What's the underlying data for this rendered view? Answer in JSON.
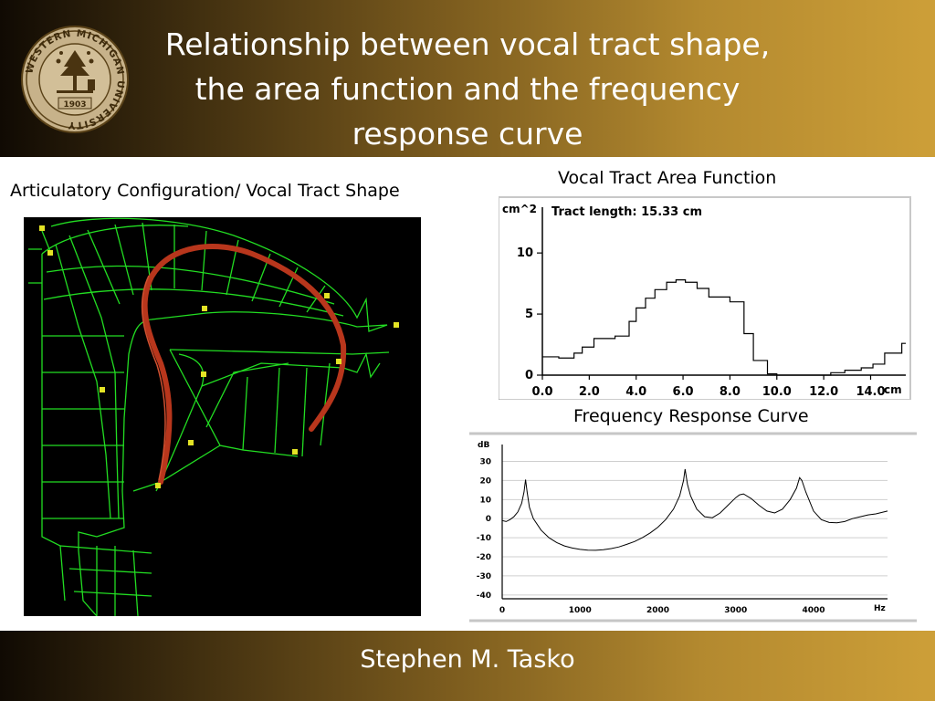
{
  "slide": {
    "title": "Relationship between vocal tract shape, the area function and the frequency response curve",
    "author": "Stephen M. Tasko"
  },
  "seal": {
    "ring_text": "WESTERN MICHIGAN UNIVERSITY",
    "year": "1903"
  },
  "captions": {
    "shape": "Articulatory Configuration/ Vocal Tract Shape",
    "area": "Vocal Tract Area Function",
    "frequency": "Frequency Response Curve"
  },
  "colors": {
    "mesh": "#22dd22",
    "tongue": "#b8361c",
    "marker": "#e3e325",
    "header_dark": "#100a03",
    "header_gold": "#cd9f38"
  },
  "chart_data": [
    {
      "type": "line",
      "title": "Vocal Tract Area Function",
      "annotation": "Tract length: 15.33 cm",
      "xlabel": "cm",
      "ylabel": "cm^2",
      "xlim": [
        0,
        15.5
      ],
      "ylim": [
        0,
        13
      ],
      "xticks": [
        "0.0",
        "2.0",
        "4.0",
        "6.0",
        "8.0",
        "10.0",
        "12.0",
        "14.0"
      ],
      "xtick_values": [
        0,
        2,
        4,
        6,
        8,
        10,
        12,
        14
      ],
      "yticks": [
        "0",
        "5",
        "10"
      ],
      "ytick_values": [
        0,
        5,
        10
      ],
      "step": true,
      "x": [
        0,
        0.7,
        1.35,
        1.7,
        2.2,
        3.1,
        3.7,
        4.0,
        4.4,
        4.8,
        5.3,
        5.7,
        6.1,
        6.6,
        7.1,
        8.0,
        8.6,
        9.0,
        9.6,
        10.0,
        11.3,
        12.3,
        12.9,
        13.6,
        14.1,
        14.6,
        15.33
      ],
      "y": [
        1.5,
        1.4,
        1.8,
        2.3,
        3.0,
        3.2,
        4.4,
        5.5,
        6.3,
        7.0,
        7.6,
        7.8,
        7.6,
        7.1,
        6.4,
        6.0,
        3.4,
        1.2,
        0.1,
        0.0,
        0.0,
        0.2,
        0.4,
        0.6,
        0.9,
        1.8,
        2.6
      ]
    },
    {
      "type": "line",
      "title": "Frequency Response Curve",
      "xlabel": "Hz",
      "ylabel": "dB",
      "xlim": [
        0,
        4950
      ],
      "ylim": [
        -42,
        36
      ],
      "xticks": [
        "0",
        "1000",
        "2000",
        "3000",
        "4000"
      ],
      "xtick_values": [
        0,
        1000,
        2000,
        3000,
        4000
      ],
      "yticks": [
        "30",
        "20",
        "10",
        "0",
        "-10",
        "-20",
        "-30",
        "-40"
      ],
      "ytick_values": [
        30,
        20,
        10,
        0,
        -10,
        -20,
        -30,
        -40
      ],
      "x": [
        0,
        50,
        100,
        150,
        200,
        250,
        280,
        300,
        320,
        350,
        400,
        500,
        600,
        700,
        800,
        900,
        1000,
        1100,
        1200,
        1300,
        1400,
        1500,
        1600,
        1700,
        1800,
        1900,
        2000,
        2100,
        2200,
        2280,
        2330,
        2350,
        2380,
        2420,
        2500,
        2600,
        2700,
        2800,
        2900,
        3000,
        3050,
        3100,
        3200,
        3300,
        3400,
        3500,
        3600,
        3700,
        3780,
        3820,
        3850,
        3900,
        4000,
        4100,
        4200,
        4300,
        4400,
        4500,
        4600,
        4700,
        4800,
        4950
      ],
      "y": [
        -1,
        -1.5,
        -0.5,
        1,
        3.5,
        8,
        14,
        20.5,
        14,
        6,
        0,
        -6,
        -10,
        -12.5,
        -14.3,
        -15.4,
        -16.1,
        -16.5,
        -16.6,
        -16.3,
        -15.7,
        -14.8,
        -13.5,
        -12,
        -10,
        -7.5,
        -4.5,
        -0.5,
        5,
        12,
        20,
        26,
        18,
        12,
        5,
        1,
        0.5,
        3,
        7,
        11,
        12.5,
        13,
        10.5,
        7,
        4,
        3,
        5,
        10,
        16,
        21.5,
        20,
        14,
        4,
        -0.5,
        -2,
        -2.2,
        -1.5,
        0,
        1,
        2,
        2.5,
        4
      ]
    }
  ]
}
